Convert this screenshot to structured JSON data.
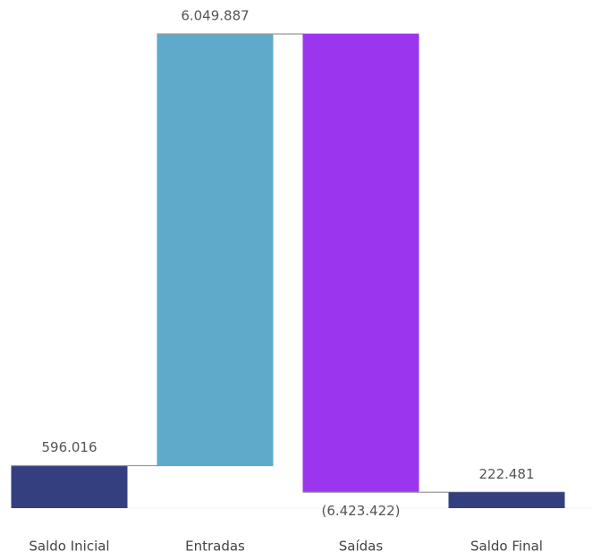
{
  "chart_data": {
    "type": "waterfall",
    "categories": [
      "Saldo Inicial",
      "Entradas",
      "Saídas",
      "Saldo Final"
    ],
    "values": [
      596016,
      6049887,
      -6423422,
      222481
    ],
    "value_labels": [
      "596.016",
      "6.049.887",
      "(6.423.422)",
      "222.481"
    ],
    "colors": [
      "#343f80",
      "#5eaacb",
      "#9b35ee",
      "#343f80"
    ]
  }
}
